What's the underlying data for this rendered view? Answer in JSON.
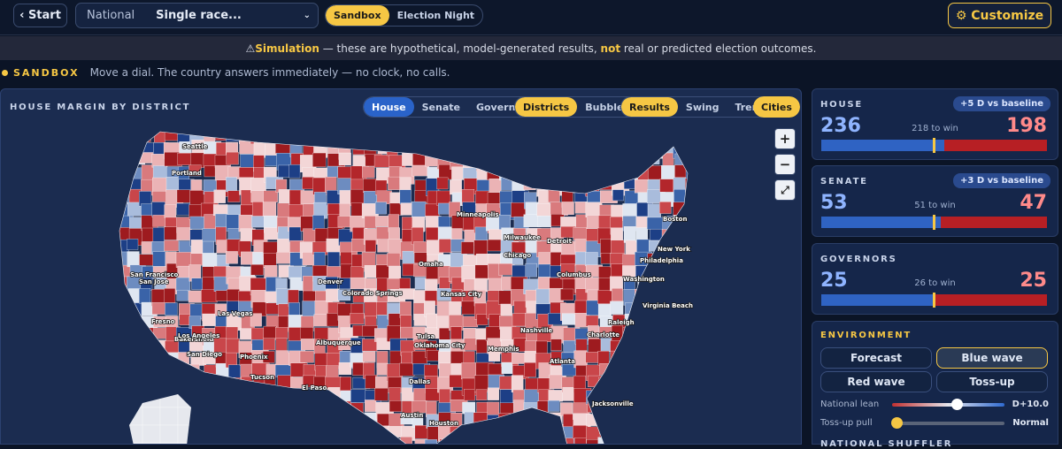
{
  "top_bar": {
    "back": "‹ Start",
    "scope": "National",
    "race": "Single race...",
    "modes": [
      "Sandbox",
      "Election Night"
    ],
    "customize": "⚙ Customize"
  },
  "banner": {
    "icon": "⚠",
    "lead": "Simulation",
    "text1": " — these are hypothetical, model-generated results, ",
    "emph": "not",
    "text2": " real or predicted election outcomes."
  },
  "sandbox": {
    "label": "SANDBOX",
    "text": "Move a dial. The country answers immediately — no clock, no calls."
  },
  "map": {
    "title": "HOUSE MARGIN BY DISTRICT",
    "chambers": [
      "House",
      "Senate",
      "Governors"
    ],
    "views": [
      "Districts",
      "Bubbles"
    ],
    "layers": [
      "Results",
      "Swing",
      "Trend"
    ],
    "cities_toggle": "Cities",
    "zoom": [
      "+",
      "−",
      "⤢"
    ],
    "cities": [
      "Seattle",
      "Portland",
      "San Francisco",
      "San Jose",
      "Fresno",
      "Bakersfield",
      "Los Angeles",
      "San Diego",
      "Las Vegas",
      "Phoenix",
      "Tucson",
      "Albuquerque",
      "El Paso",
      "Denver",
      "Colorado Springs",
      "Omaha",
      "Kansas City",
      "Minneapolis",
      "Milwaukee",
      "Chicago",
      "Detroit",
      "Columbus",
      "Tulsa",
      "Oklahoma City",
      "Dallas",
      "Austin",
      "Houston",
      "Memphis",
      "Nashville",
      "Atlanta",
      "Charlotte",
      "Raleigh",
      "Virginia Beach",
      "Washington",
      "Philadelphia",
      "New York",
      "Boston",
      "Jacksonville"
    ]
  },
  "races": [
    {
      "name": "HOUSE",
      "shift": "+5 D vs baseline",
      "dem": 236,
      "to_win": "218 to win",
      "rep": 198
    },
    {
      "name": "SENATE",
      "shift": "+3 D vs baseline",
      "dem": 53,
      "to_win": "51 to win",
      "rep": 47
    },
    {
      "name": "GOVERNORS",
      "dem": 25,
      "to_win": "26 to win",
      "rep": 25
    }
  ],
  "environment": {
    "title": "ENVIRONMENT",
    "presets": [
      "Forecast",
      "Blue wave",
      "Red wave",
      "Toss-up"
    ],
    "lean_label": "National lean",
    "lean_value": "D+10.0",
    "pull_label": "Toss-up pull",
    "pull_value": "Normal",
    "next_section": "NATIONAL SHUFFLER"
  }
}
